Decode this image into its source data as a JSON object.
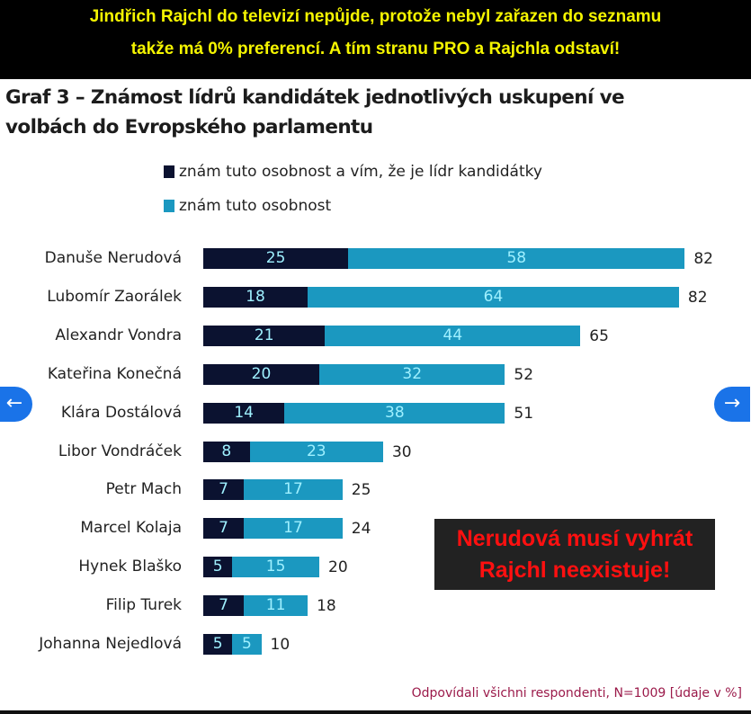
{
  "banner": {
    "line1": "Jindřich Rajchl do televizí nepůjde, protože nebyl zařazen do seznamu",
    "line2": "takže má 0% preferencí. A tím stranu PRO a Rajchla odstaví!"
  },
  "overlay_note": {
    "line1": "Nerudová musí vyhrát",
    "line2": "Rajchl neexistuje!"
  },
  "nav": {
    "prev_icon": "arrow-left-icon",
    "next_icon": "arrow-right-icon",
    "prev_glyph": "←",
    "next_glyph": "→"
  },
  "colors": {
    "dark": "#0b1230",
    "teal": "#1b98c0",
    "nav": "#1a73e8"
  },
  "chart_data": {
    "type": "bar",
    "orientation": "horizontal",
    "stacked": true,
    "title_line1": "Graf 3 – Známost lídrů kandidátek jednotlivých uskupení ve",
    "title_line2": "volbách do Evropského parlamentu",
    "legend": [
      "znám tuto osobnost a vím, že je lídr kandidátky",
      "znám tuto osobnost"
    ],
    "legend_placement": "top",
    "categories": [
      "Danuše Nerudová",
      "Lubomír Zaorálek",
      "Alexandr Vondra",
      "Kateřina Konečná",
      "Klára Dostálová",
      "Libor Vondráček",
      "Petr Mach",
      "Marcel Kolaja",
      "Hynek Blaško",
      "Filip Turek",
      "Johanna Nejedlová"
    ],
    "series": [
      {
        "name": "znám tuto osobnost a vím, že je lídr kandidátky",
        "values": [
          25,
          18,
          21,
          20,
          14,
          8,
          7,
          7,
          5,
          7,
          5
        ]
      },
      {
        "name": "znám tuto osobnost",
        "values": [
          58,
          64,
          44,
          32,
          38,
          23,
          17,
          17,
          15,
          11,
          5
        ]
      }
    ],
    "totals": [
      82,
      82,
      65,
      52,
      51,
      30,
      25,
      24,
      20,
      18,
      10
    ],
    "footnote": "Odpovídali všichni respondenti, N=1009 [údaje v %]"
  }
}
